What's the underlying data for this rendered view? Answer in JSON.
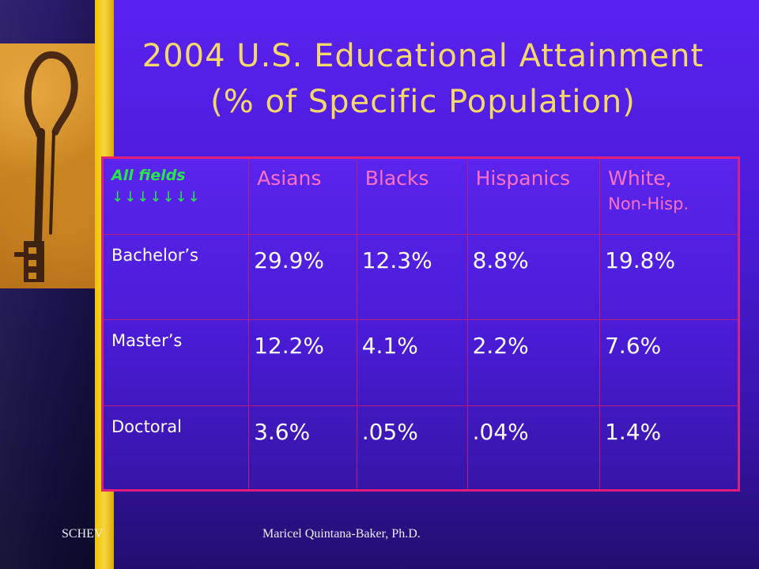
{
  "slide": {
    "title_line1": "2004 U.S. Educational Attainment",
    "title_line2": "(% of Specific Population)"
  },
  "table": {
    "corner_label": "All fields",
    "corner_arrows": "↓↓↓↓↓↓↓",
    "headers": [
      "Asians",
      "Blacks",
      "Hispanics",
      "White,",
      "Non-Hisp."
    ],
    "rows": [
      {
        "label": "Bachelor’s",
        "values": [
          "29.9%",
          "12.3%",
          "8.8%",
          "19.8%"
        ]
      },
      {
        "label": "Master’s",
        "values": [
          "12.2%",
          "4.1%",
          "2.2%",
          "7.6%"
        ]
      },
      {
        "label": "Doctoral",
        "values": [
          "3.6%",
          ".05%",
          ".04%",
          "1.4%"
        ]
      }
    ]
  },
  "footer": {
    "left": "SCHEV",
    "center": "Maricel Quintana-Baker, Ph.D."
  },
  "colors": {
    "background": "#4a1bd8",
    "title": "#f5d86a",
    "accent_bar": "#f2c200",
    "table_border": "#e21e7a",
    "header_text": "#ff70c0",
    "corner_text": "#27e84a"
  },
  "icons": {
    "decoration": "old-key-image"
  }
}
